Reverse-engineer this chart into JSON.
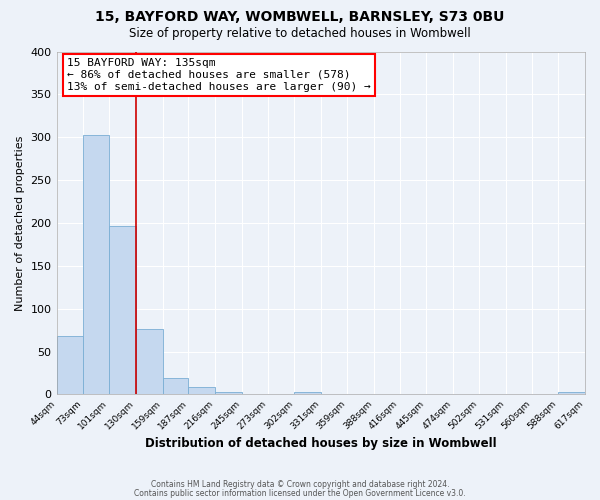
{
  "title": "15, BAYFORD WAY, WOMBWELL, BARNSLEY, S73 0BU",
  "subtitle": "Size of property relative to detached houses in Wombwell",
  "xlabel": "Distribution of detached houses by size in Wombwell",
  "ylabel": "Number of detached properties",
  "bar_color": "#c5d8ef",
  "bar_edge_color": "#7aaed4",
  "background_color": "#edf2f9",
  "grid_color": "#ffffff",
  "marker_line_color": "#cc0000",
  "annotation_title": "15 BAYFORD WAY: 135sqm",
  "annotation_line1": "← 86% of detached houses are smaller (578)",
  "annotation_line2": "13% of semi-detached houses are larger (90) →",
  "bin_edges": [
    44,
    73,
    101,
    130,
    159,
    187,
    216,
    245,
    273,
    302,
    331,
    359,
    388,
    416,
    445,
    474,
    502,
    531,
    560,
    588,
    617
  ],
  "bin_labels": [
    "44sqm",
    "73sqm",
    "101sqm",
    "130sqm",
    "159sqm",
    "187sqm",
    "216sqm",
    "245sqm",
    "273sqm",
    "302sqm",
    "331sqm",
    "359sqm",
    "388sqm",
    "416sqm",
    "445sqm",
    "474sqm",
    "502sqm",
    "531sqm",
    "560sqm",
    "588sqm",
    "617sqm"
  ],
  "counts": [
    68,
    303,
    197,
    76,
    19,
    9,
    3,
    0,
    0,
    3,
    0,
    0,
    0,
    0,
    0,
    0,
    0,
    0,
    0,
    3
  ],
  "ylim": [
    0,
    400
  ],
  "yticks": [
    0,
    50,
    100,
    150,
    200,
    250,
    300,
    350,
    400
  ],
  "footer1": "Contains HM Land Registry data © Crown copyright and database right 2024.",
  "footer2": "Contains public sector information licensed under the Open Government Licence v3.0."
}
